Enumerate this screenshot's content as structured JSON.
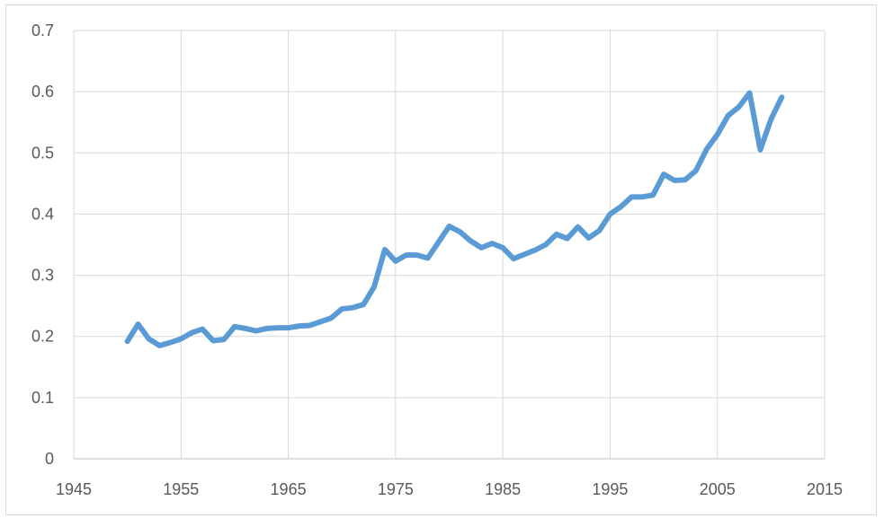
{
  "chart_data": {
    "type": "line",
    "title": "",
    "xlabel": "",
    "ylabel": "",
    "xlim": [
      1945,
      2015
    ],
    "ylim": [
      0,
      0.7
    ],
    "xticks": [
      1945,
      1955,
      1965,
      1975,
      1985,
      1995,
      2005,
      2015
    ],
    "yticks": [
      0,
      0.1,
      0.2,
      0.3,
      0.4,
      0.5,
      0.6,
      0.7
    ],
    "xtick_labels": [
      "1945",
      "1955",
      "1965",
      "1975",
      "1985",
      "1995",
      "2005",
      "2015"
    ],
    "ytick_labels": [
      "0",
      "0.1",
      "0.2",
      "0.3",
      "0.4",
      "0.5",
      "0.6",
      "0.7"
    ],
    "grid": true,
    "legend": "none",
    "series": [
      {
        "color": "#5b9bd5",
        "x": [
          1950,
          1951,
          1952,
          1953,
          1954,
          1955,
          1956,
          1957,
          1958,
          1959,
          1960,
          1961,
          1962,
          1963,
          1964,
          1965,
          1966,
          1967,
          1968,
          1969,
          1970,
          1971,
          1972,
          1973,
          1974,
          1975,
          1976,
          1977,
          1978,
          1979,
          1980,
          1981,
          1982,
          1983,
          1984,
          1985,
          1986,
          1987,
          1988,
          1989,
          1990,
          1991,
          1992,
          1993,
          1994,
          1995,
          1996,
          1997,
          1998,
          1999,
          2000,
          2001,
          2002,
          2003,
          2004,
          2005,
          2006,
          2007,
          2008,
          2009,
          2010,
          2011
        ],
        "y": [
          0.192,
          0.22,
          0.196,
          0.185,
          0.19,
          0.196,
          0.206,
          0.212,
          0.193,
          0.195,
          0.216,
          0.213,
          0.209,
          0.213,
          0.214,
          0.214,
          0.217,
          0.218,
          0.224,
          0.23,
          0.245,
          0.247,
          0.252,
          0.281,
          0.342,
          0.323,
          0.333,
          0.333,
          0.328,
          0.354,
          0.38,
          0.371,
          0.356,
          0.345,
          0.352,
          0.345,
          0.327,
          0.334,
          0.341,
          0.35,
          0.367,
          0.36,
          0.379,
          0.361,
          0.373,
          0.4,
          0.412,
          0.428,
          0.428,
          0.431,
          0.465,
          0.455,
          0.456,
          0.471,
          0.506,
          0.53,
          0.561,
          0.575,
          0.598,
          0.505,
          0.555,
          0.591
        ]
      }
    ]
  }
}
